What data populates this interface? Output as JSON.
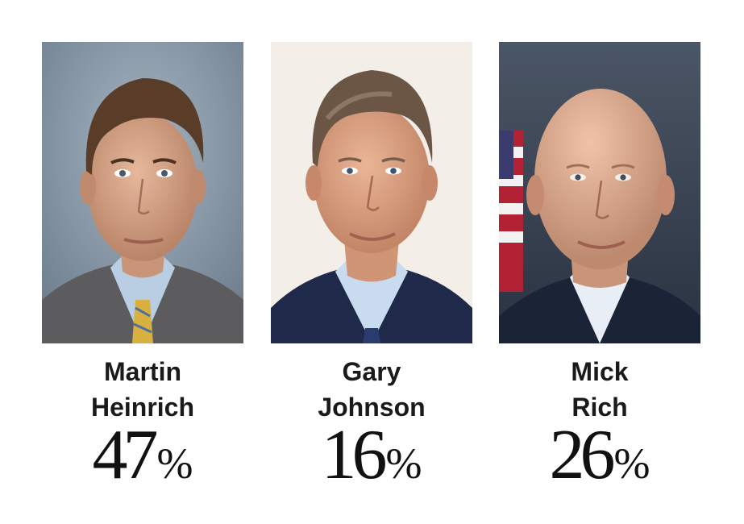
{
  "candidates": [
    {
      "first_name": "Martin",
      "last_name": "Heinrich",
      "percent_value": "47",
      "percent_symbol": "%",
      "percent": 47,
      "photo": {
        "bg": "#8a9aa8",
        "skin": "#d9a68a",
        "hair": "#5a3d28",
        "suit": "#5e5e60",
        "shirt": "#b9cde3",
        "tie": "#e0b640"
      }
    },
    {
      "first_name": "Gary",
      "last_name": "Johnson",
      "percent_value": "16",
      "percent_symbol": "%",
      "percent": 16,
      "photo": {
        "bg": "#f1ece6",
        "skin": "#dba283",
        "hair": "#6b5544",
        "suit": "#1f2a4a",
        "shirt": "#c9dcef",
        "tie": "#2a3c6e"
      }
    },
    {
      "first_name": "Mick",
      "last_name": "Rich",
      "percent_value": "26",
      "percent_symbol": "%",
      "percent": 26,
      "photo": {
        "bg": "#3a4656",
        "skin": "#d9a68c",
        "hair": "#d9a68c",
        "suit": "#1a2436",
        "shirt": "#e8eef5",
        "tie": "#1a2436"
      }
    }
  ]
}
